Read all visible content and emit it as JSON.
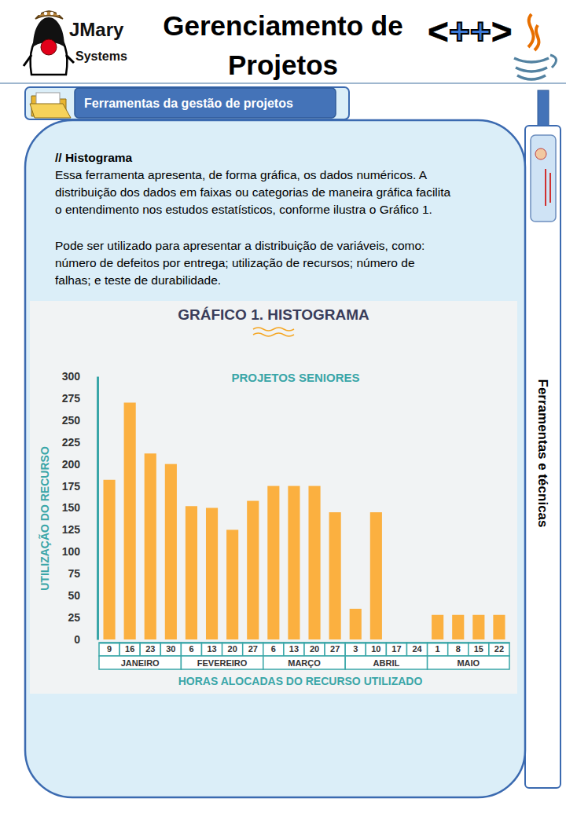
{
  "page": {
    "header": {
      "logo_name": "JMary",
      "logo_sub": "Systems",
      "title": [
        "Gerenciamento de",
        "Projetos"
      ],
      "symbol": "<++>"
    },
    "section_tab": "Ferramentas da gestão de projetos",
    "side_label": "Ferramentas e técnicas",
    "body": {
      "heading": "// Histograma",
      "paragraphs": [
        [
          "Essa ferramenta apresenta, de forma gráfica, os dados numéricos. A",
          "distribuição dos dados em faixas ou categorias de maneira gráfica facilita",
          "o entendimento nos estudos estatísticos, conforme ilustra o Gráfico 1."
        ],
        [
          "Pode ser utilizado para apresentar a distribuição de variáveis, como:",
          "número de defeitos por entrega; utilização de recursos; número de",
          "falhas; e teste de durabilidade."
        ]
      ]
    }
  },
  "chart_data": {
    "type": "bar",
    "title": "GRÁFICO 1. HISTOGRAMA",
    "subtitle": "PROJETOS SENIORES",
    "x_label": "HORAS ALOCADAS DO RECURSO UTILIZADO",
    "y_label": "UTILIZAÇÃO DO RECURSO",
    "categories": [
      "9",
      "16",
      "23",
      "30",
      "6",
      "13",
      "20",
      "27",
      "6",
      "13",
      "20",
      "27",
      "3",
      "10",
      "17",
      "24",
      "1",
      "8",
      "15",
      "22"
    ],
    "values": [
      182,
      270,
      212,
      200,
      152,
      150,
      125,
      158,
      175,
      175,
      175,
      145,
      35,
      145,
      0,
      0,
      28,
      28,
      28,
      28
    ],
    "x_groups": [
      {
        "label": "JANEIRO",
        "start": 0,
        "end": 3
      },
      {
        "label": "FEVEREIRO",
        "start": 4,
        "end": 7
      },
      {
        "label": "MARÇO",
        "start": 8,
        "end": 11
      },
      {
        "label": "ABRIL",
        "start": 12,
        "end": 15
      },
      {
        "label": "MAIO",
        "start": 16,
        "end": 19
      }
    ],
    "color": "#fbb040",
    "ylim": [
      0,
      300
    ],
    "yticks": [
      0,
      25,
      50,
      75,
      100,
      125,
      150,
      175,
      200,
      225,
      250,
      275,
      300
    ],
    "grid": false
  }
}
